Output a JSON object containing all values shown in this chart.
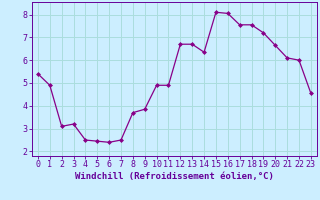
{
  "x": [
    0,
    1,
    2,
    3,
    4,
    5,
    6,
    7,
    8,
    9,
    10,
    11,
    12,
    13,
    14,
    15,
    16,
    17,
    18,
    19,
    20,
    21,
    22,
    23
  ],
  "y": [
    5.4,
    4.9,
    3.1,
    3.2,
    2.5,
    2.45,
    2.4,
    2.5,
    3.7,
    3.85,
    4.9,
    4.9,
    6.7,
    6.7,
    6.35,
    8.1,
    8.05,
    7.55,
    7.55,
    7.2,
    6.65,
    6.1,
    6.0,
    4.55
  ],
  "line_color": "#880088",
  "marker_color": "#880088",
  "bg_color": "#cceeff",
  "grid_color": "#aadddd",
  "axis_color": "#660099",
  "xlabel": "Windchill (Refroidissement éolien,°C)",
  "xlim": [
    -0.5,
    23.5
  ],
  "ylim": [
    1.8,
    8.55
  ],
  "yticks": [
    2,
    3,
    4,
    5,
    6,
    7,
    8
  ],
  "xticks": [
    0,
    1,
    2,
    3,
    4,
    5,
    6,
    7,
    8,
    9,
    10,
    11,
    12,
    13,
    14,
    15,
    16,
    17,
    18,
    19,
    20,
    21,
    22,
    23
  ],
  "label_fontsize": 6.5,
  "tick_fontsize": 6.0
}
